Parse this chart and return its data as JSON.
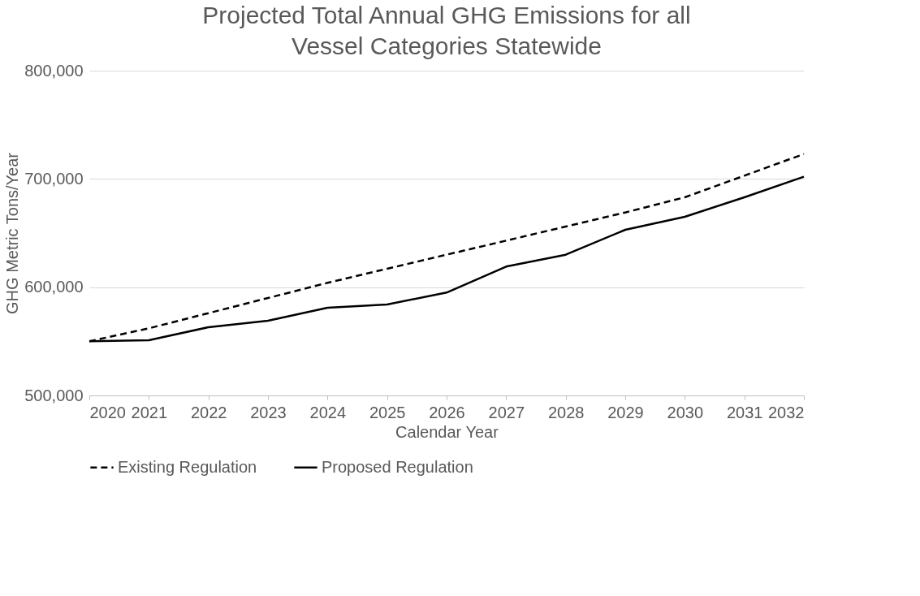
{
  "chart_data": {
    "type": "line",
    "title": "Projected Total Annual GHG Emissions for all Vessel Categories Statewide",
    "xlabel": "Calendar Year",
    "ylabel": "GHG Metric Tons/Year",
    "categories": [
      "2020",
      "2021",
      "2022",
      "2023",
      "2024",
      "2025",
      "2026",
      "2027",
      "2028",
      "2029",
      "2030",
      "2031",
      "2032"
    ],
    "series": [
      {
        "name": "Existing Regulation",
        "color": "#000000",
        "line_style": "dashed",
        "values": [
          550000,
          562000,
          576000,
          590000,
          604000,
          617000,
          630000,
          643000,
          656000,
          669000,
          683000,
          703000,
          723000
        ]
      },
      {
        "name": "Proposed Regulation",
        "color": "#000000",
        "line_style": "solid",
        "values": [
          550000,
          551000,
          563000,
          569000,
          581000,
          584000,
          595000,
          619000,
          630000,
          653000,
          665000,
          683000,
          702000
        ]
      }
    ],
    "ylim": [
      500000,
      800000
    ],
    "yticks": [
      {
        "value": 500000,
        "label": "500,000"
      },
      {
        "value": 600000,
        "label": "600,000"
      },
      {
        "value": 700000,
        "label": "700,000"
      },
      {
        "value": 800000,
        "label": "800,000"
      }
    ],
    "grid": "y",
    "legend": "bottom",
    "marker": "none"
  }
}
